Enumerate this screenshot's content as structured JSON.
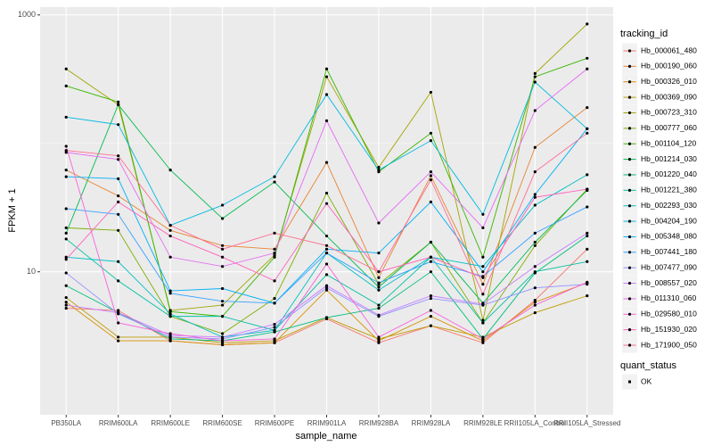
{
  "chart_data": {
    "type": "line",
    "x_label": "sample_name",
    "y_label": "FPKM + 1",
    "y_scale": "log",
    "ylim": [
      0.77,
      1150
    ],
    "yticks": [
      10,
      1000
    ],
    "grid": true,
    "legend_title": "tracking_id",
    "legend_position": "right",
    "point_color": "#000000",
    "shape_legend": {
      "title": "quant_status",
      "labels": [
        "OK"
      ]
    },
    "categories": [
      "PB350LA",
      "RRIM600LA",
      "RRIM600LE",
      "RRIM600SE",
      "RRIM600PE",
      "RRIM901LA",
      "RRIM928BA",
      "RRIM928LA",
      "RRIM928LE",
      "RRII105LA_Control",
      "RRII105LA_Stressed"
    ],
    "series": [
      {
        "name": "Hb_000061_480",
        "color": "#F8766D",
        "values": [
          5.2,
          5.0,
          2.9,
          2.7,
          2.8,
          4.3,
          2.8,
          3.8,
          2.8,
          6.0,
          15
        ]
      },
      {
        "name": "Hb_000190_060",
        "color": "#EA8331",
        "values": [
          62,
          39,
          21,
          16,
          15,
          71,
          9.0,
          56,
          8,
          93,
          190
        ]
      },
      {
        "name": "Hb_000326_010",
        "color": "#D89000",
        "values": [
          5.8,
          2.9,
          2.9,
          2.7,
          2.8,
          7.2,
          2.9,
          4.5,
          2.9,
          5.8,
          8.2
        ]
      },
      {
        "name": "Hb_000369_090",
        "color": "#C09B00",
        "values": [
          6.3,
          3.1,
          3.1,
          2.8,
          2.9,
          4.4,
          3.0,
          3.8,
          3.1,
          4.8,
          6.5
        ]
      },
      {
        "name": "Hb_000723_310",
        "color": "#A3A500",
        "values": [
          380,
          200,
          5.0,
          5.5,
          13.5,
          330,
          65,
          250,
          4.2,
          350,
          850
        ]
      },
      {
        "name": "Hb_000777_060",
        "color": "#7CAE00",
        "values": [
          22,
          21,
          4.5,
          3.3,
          6.2,
          41,
          8.0,
          17,
          4.0,
          16,
          44
        ]
      },
      {
        "name": "Hb_001104_120",
        "color": "#39B600",
        "values": [
          280,
          210,
          4.9,
          4.5,
          13,
          380,
          60,
          120,
          13,
          330,
          460
        ]
      },
      {
        "name": "Hb_001214_030",
        "color": "#00BB4E",
        "values": [
          20,
          200,
          62,
          26,
          50,
          19,
          7.6,
          17,
          5.7,
          17,
          43
        ]
      },
      {
        "name": "Hb_001220_040",
        "color": "#00BF7D",
        "values": [
          7.8,
          4.8,
          3.0,
          2.9,
          3.4,
          4.4,
          5.2,
          10,
          3.0,
          9.8,
          19
        ]
      },
      {
        "name": "Hb_001221_380",
        "color": "#00C1A3",
        "values": [
          18,
          8.5,
          4.5,
          4.5,
          3.5,
          9.5,
          5.5,
          13,
          4.0,
          10,
          12
        ]
      },
      {
        "name": "Hb_002293_030",
        "color": "#00BFC4",
        "values": [
          13,
          12,
          4.7,
          3.1,
          3.5,
          14,
          7.2,
          13,
          11,
          33,
          57
        ]
      },
      {
        "name": "Hb_004204_190",
        "color": "#00BAE0",
        "values": [
          160,
          140,
          23,
          33,
          55,
          240,
          62,
          105,
          28,
          300,
          130
        ]
      },
      {
        "name": "Hb_005348_080",
        "color": "#00B0F6",
        "values": [
          55,
          53,
          7.1,
          7.4,
          5.7,
          15,
          14,
          35,
          10,
          40,
          130
        ]
      },
      {
        "name": "Hb_007441_180",
        "color": "#35A2FF",
        "values": [
          31,
          28,
          6.8,
          5.9,
          5.7,
          14,
          8.2,
          12,
          9.2,
          20,
          32
        ]
      },
      {
        "name": "Hb_007477_090",
        "color": "#9590FF",
        "values": [
          9.8,
          4.7,
          3.1,
          3.0,
          3.7,
          7.5,
          4.5,
          6.2,
          5.5,
          7.5,
          8.0
        ]
      },
      {
        "name": "Hb_008557_020",
        "color": "#C77CFF",
        "values": [
          5.5,
          4.8,
          3.2,
          3.1,
          3.9,
          7.8,
          4.6,
          6.5,
          5.6,
          11,
          20
        ]
      },
      {
        "name": "Hb_011310_060",
        "color": "#E76BF3",
        "values": [
          85,
          75,
          13,
          11,
          14,
          150,
          24,
          60,
          22,
          180,
          380
        ]
      },
      {
        "name": "Hb_029580_010",
        "color": "#FA62DB",
        "values": [
          95,
          4.0,
          3.3,
          2.9,
          3.0,
          11.5,
          3.1,
          5.0,
          3.0,
          5.5,
          8.3
        ]
      },
      {
        "name": "Hb_151930_020",
        "color": "#FF62BC",
        "values": [
          12.5,
          35,
          19,
          13,
          8.5,
          34,
          10,
          13,
          9.0,
          38,
          44
        ]
      },
      {
        "name": "Hb_171900_050",
        "color": "#FF6C91",
        "values": [
          88,
          80,
          23,
          15,
          20,
          16,
          10,
          52,
          6.7,
          60,
          120
        ]
      }
    ]
  }
}
